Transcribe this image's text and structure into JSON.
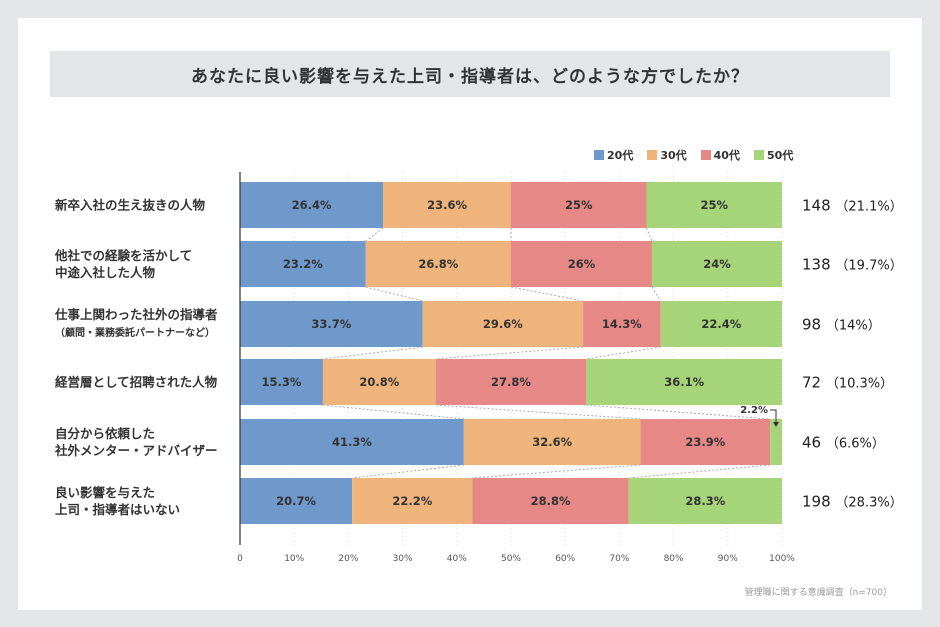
{
  "chart_data": {
    "type": "bar",
    "orientation": "horizontal-stacked-100",
    "title": "あなたに良い影響を与えた上司・指導者は、どのような方でしたか？",
    "categories": [
      {
        "label": "新卒入社の生え抜きの人物",
        "sub": "",
        "total": "148",
        "share": "（21.1%）"
      },
      {
        "label": "他社での経験を活かして\n中途入社した人物",
        "sub": "",
        "total": "138",
        "share": "（19.7%）"
      },
      {
        "label": "仕事上関わった社外の指導者",
        "sub": "（顧問・業務委託パートナーなど）",
        "total": "98",
        "share": "（14%）"
      },
      {
        "label": "経営層として招聘された人物",
        "sub": "",
        "total": "72",
        "share": "（10.3%）"
      },
      {
        "label": "自分から依頼した\n社外メンター・アドバイザー",
        "sub": "",
        "total": "46",
        "share": "（6.6%）"
      },
      {
        "label": "良い影響を与えた\n上司・指導者はいない",
        "sub": "",
        "total": "198",
        "share": "（28.3%）"
      }
    ],
    "series": [
      {
        "name": "20代",
        "color": "#7099cb",
        "values": [
          26.4,
          23.2,
          33.7,
          15.3,
          41.3,
          20.7
        ],
        "labels": [
          "26.4%",
          "23.2%",
          "33.7%",
          "15.3%",
          "41.3%",
          "20.7%"
        ]
      },
      {
        "name": "30代",
        "color": "#efb37c",
        "values": [
          23.6,
          26.8,
          29.6,
          20.8,
          32.6,
          22.2
        ],
        "labels": [
          "23.6%",
          "26.8%",
          "29.6%",
          "20.8%",
          "32.6%",
          "22.2%"
        ]
      },
      {
        "name": "40代",
        "color": "#e68886",
        "values": [
          25,
          26,
          14.3,
          27.8,
          23.9,
          28.8
        ],
        "labels": [
          "25%",
          "26%",
          "14.3%",
          "27.8%",
          "23.9%",
          "28.8%"
        ]
      },
      {
        "name": "50代",
        "color": "#a5d479",
        "values": [
          25,
          24,
          22.4,
          36.1,
          2.2,
          28.3
        ],
        "labels": [
          "25%",
          "24%",
          "22.4%",
          "36.1%",
          "2.2%",
          "28.3%"
        ]
      }
    ],
    "xticks": [
      "0",
      "10%",
      "20%",
      "30%",
      "40%",
      "50%",
      "60%",
      "70%",
      "80%",
      "90%",
      "100%"
    ],
    "xlim": [
      0,
      100
    ],
    "legend": "top-right",
    "note": "管理職に関する意識調査（n=700）"
  }
}
